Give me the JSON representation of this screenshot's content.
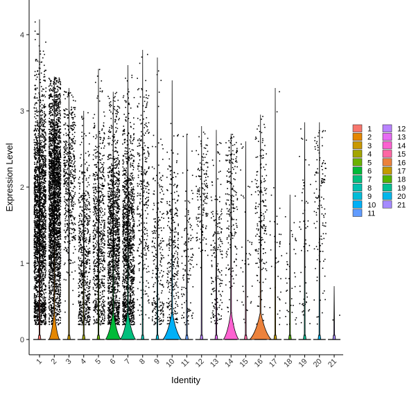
{
  "chart_data": {
    "type": "violin",
    "xlabel": "Identity",
    "ylabel": "Expression Level",
    "ylim": [
      -0.2,
      4.3
    ],
    "yticks": [
      0,
      1,
      2,
      3,
      4
    ],
    "categories": [
      "1",
      "2",
      "3",
      "4",
      "5",
      "6",
      "7",
      "8",
      "9",
      "10",
      "11",
      "12",
      "13",
      "14",
      "15",
      "16",
      "17",
      "18",
      "19",
      "20",
      "21"
    ],
    "colors": [
      "#F8766D",
      "#E58700",
      "#C99800",
      "#A3A500",
      "#6BB100",
      "#00BA38",
      "#00BF7D",
      "#00C0AF",
      "#00BCD8",
      "#00B0F6",
      "#619CFF",
      "#B983FF",
      "#E76BF3",
      "#FD61D1",
      "#FF67A4",
      "#EC823C",
      "#C49A00",
      "#53B400",
      "#00C094",
      "#00B6EB",
      "#A58AFF"
    ],
    "series": [
      {
        "name": "1",
        "values": {
          "max": 4.2,
          "points": 2200,
          "center": 1.5,
          "spread": 0.9,
          "violin_peak": 0.0
        }
      },
      {
        "name": "2",
        "values": {
          "max": 3.45,
          "points": 2600,
          "center": 1.8,
          "spread": 0.8,
          "violin_peak": 0.12
        }
      },
      {
        "name": "3",
        "values": {
          "max": 3.3,
          "points": 500,
          "center": 2.1,
          "spread": 0.6,
          "violin_peak": 0.0
        }
      },
      {
        "name": "4",
        "values": {
          "max": 3.0,
          "points": 650,
          "center": 1.0,
          "spread": 0.8,
          "violin_peak": 0.0
        }
      },
      {
        "name": "5",
        "values": {
          "max": 3.55,
          "points": 700,
          "center": 1.3,
          "spread": 0.8,
          "violin_peak": 0.0
        }
      },
      {
        "name": "6",
        "values": {
          "max": 3.25,
          "points": 1300,
          "center": 1.2,
          "spread": 0.8,
          "violin_peak": 0.2
        }
      },
      {
        "name": "7",
        "values": {
          "max": 3.6,
          "points": 1300,
          "center": 1.2,
          "spread": 0.8,
          "violin_peak": 0.2
        }
      },
      {
        "name": "8",
        "values": {
          "max": 3.8,
          "points": 300,
          "center": 1.8,
          "spread": 0.8,
          "violin_peak": 0.0
        }
      },
      {
        "name": "9",
        "values": {
          "max": 3.7,
          "points": 250,
          "center": 1.0,
          "spread": 0.9,
          "violin_peak": 0.0
        }
      },
      {
        "name": "10",
        "values": {
          "max": 3.4,
          "points": 300,
          "center": 1.2,
          "spread": 0.7,
          "violin_peak": 0.25
        }
      },
      {
        "name": "11",
        "values": {
          "max": 2.7,
          "points": 120,
          "center": 1.0,
          "spread": 0.7,
          "violin_peak": 0.0
        }
      },
      {
        "name": "12",
        "values": {
          "max": 2.8,
          "points": 150,
          "center": 1.9,
          "spread": 0.4,
          "violin_peak": 0.0
        }
      },
      {
        "name": "13",
        "values": {
          "max": 2.75,
          "points": 180,
          "center": 1.0,
          "spread": 0.7,
          "violin_peak": 0.0
        }
      },
      {
        "name": "14",
        "values": {
          "max": 2.7,
          "points": 200,
          "center": 1.8,
          "spread": 0.6,
          "violin_peak": 0.2
        }
      },
      {
        "name": "15",
        "values": {
          "max": 2.6,
          "points": 40,
          "center": 1.2,
          "spread": 0.7,
          "violin_peak": 0.0
        }
      },
      {
        "name": "16",
        "values": {
          "max": 2.95,
          "points": 180,
          "center": 1.6,
          "spread": 0.6,
          "violin_peak": 0.3
        }
      },
      {
        "name": "17",
        "values": {
          "max": 3.3,
          "points": 40,
          "center": 1.0,
          "spread": 0.8,
          "violin_peak": 0.0
        }
      },
      {
        "name": "18",
        "values": {
          "max": 1.9,
          "points": 40,
          "center": 0.7,
          "spread": 0.5,
          "violin_peak": 0.0
        }
      },
      {
        "name": "19",
        "values": {
          "max": 2.85,
          "points": 60,
          "center": 1.2,
          "spread": 0.8,
          "violin_peak": 0.0
        }
      },
      {
        "name": "20",
        "values": {
          "max": 2.85,
          "points": 120,
          "center": 1.8,
          "spread": 0.7,
          "violin_peak": 0.0
        }
      },
      {
        "name": "21",
        "values": {
          "max": 0.7,
          "points": 2,
          "center": 0.3,
          "spread": 0.2,
          "violin_peak": 0.0
        }
      }
    ]
  }
}
